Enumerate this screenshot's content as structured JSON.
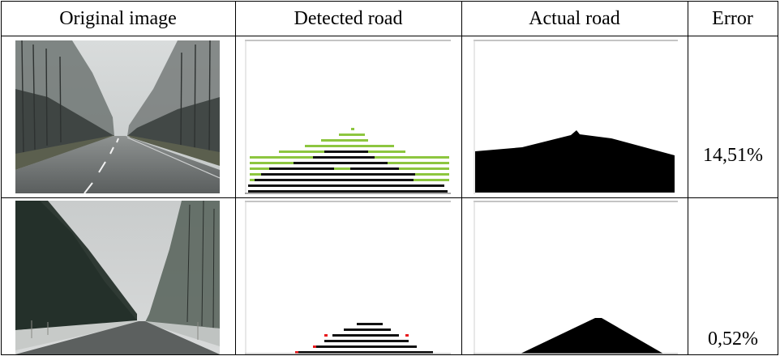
{
  "table": {
    "headers": {
      "original": "Original image",
      "detected": "Detected road",
      "actual": "Actual road",
      "error": "Error"
    },
    "rows": [
      {
        "error": "14,51%"
      },
      {
        "error": "0,52%"
      }
    ]
  },
  "colors": {
    "detected_road": "#000000",
    "not_road": "#8dc63f",
    "false_detection": "#e8191d",
    "actual_road_mask": "#000000"
  }
}
